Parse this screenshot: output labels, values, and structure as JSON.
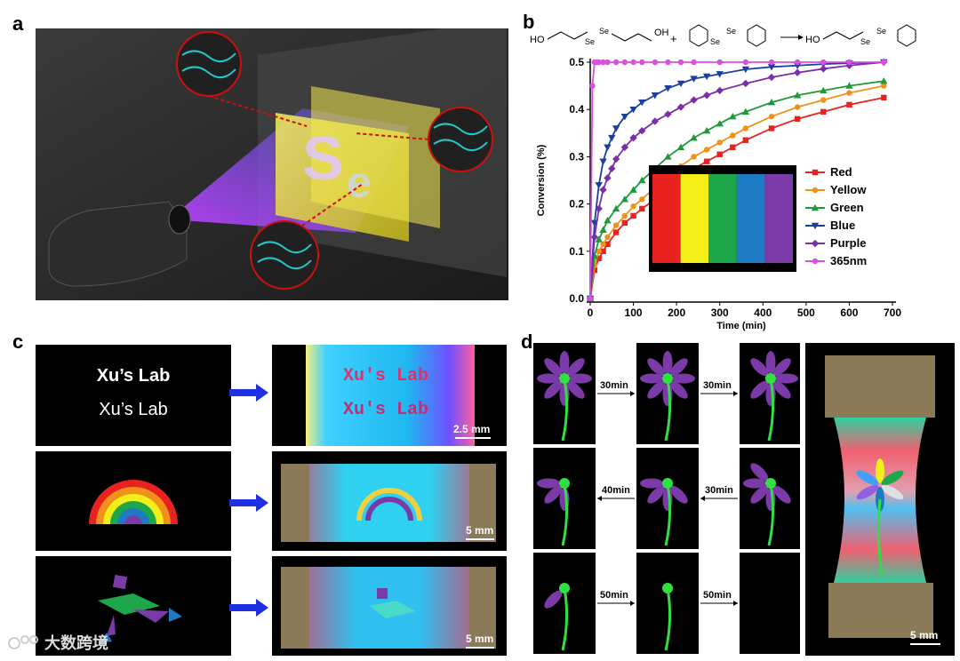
{
  "panels": {
    "a": "a",
    "b": "b",
    "c": "c",
    "d": "d"
  },
  "reaction": {
    "reactant1": "HO–(CH2)3–Se–Se–(CH2)3–OH",
    "reactant2": "benzyl diselenide",
    "product": "HO–(CH2)3–Se–Se–CH2Ph",
    "ho_left": "HO",
    "oh_right": "OH",
    "se": "Se",
    "plus": "+",
    "ho_product": "HO"
  },
  "chart_data": {
    "type": "line",
    "title": "",
    "xlabel": "Time (min)",
    "ylabel": "Conversion (%)",
    "xlim": [
      0,
      700
    ],
    "ylim": [
      0,
      0.5
    ],
    "xticks": [
      0,
      100,
      200,
      300,
      400,
      500,
      600,
      700
    ],
    "yticks": [
      0.0,
      0.1,
      0.2,
      0.3,
      0.4,
      0.5
    ],
    "legend_position": "lower-right",
    "series": [
      {
        "name": "Red",
        "color": "#e8231f",
        "marker": "square",
        "x": [
          0,
          10,
          20,
          30,
          40,
          60,
          80,
          100,
          120,
          150,
          180,
          210,
          240,
          270,
          300,
          330,
          360,
          420,
          480,
          540,
          600,
          680
        ],
        "y": [
          0,
          0.06,
          0.085,
          0.1,
          0.115,
          0.14,
          0.16,
          0.175,
          0.19,
          0.21,
          0.235,
          0.255,
          0.275,
          0.29,
          0.305,
          0.32,
          0.335,
          0.36,
          0.38,
          0.395,
          0.41,
          0.425
        ]
      },
      {
        "name": "Yellow",
        "color": "#f0911a",
        "marker": "circle",
        "x": [
          0,
          10,
          20,
          30,
          40,
          60,
          80,
          100,
          120,
          150,
          180,
          210,
          240,
          270,
          300,
          330,
          360,
          420,
          480,
          540,
          600,
          680
        ],
        "y": [
          0,
          0.07,
          0.1,
          0.115,
          0.13,
          0.155,
          0.175,
          0.195,
          0.21,
          0.235,
          0.26,
          0.28,
          0.3,
          0.315,
          0.33,
          0.345,
          0.36,
          0.385,
          0.405,
          0.42,
          0.435,
          0.45
        ]
      },
      {
        "name": "Green",
        "color": "#1f9a3a",
        "marker": "triangle-up",
        "x": [
          0,
          10,
          20,
          30,
          40,
          60,
          80,
          100,
          120,
          150,
          180,
          210,
          240,
          270,
          300,
          330,
          360,
          420,
          480,
          540,
          600,
          680
        ],
        "y": [
          0,
          0.09,
          0.125,
          0.145,
          0.165,
          0.19,
          0.21,
          0.23,
          0.25,
          0.275,
          0.3,
          0.32,
          0.34,
          0.355,
          0.37,
          0.385,
          0.395,
          0.415,
          0.43,
          0.44,
          0.45,
          0.46
        ]
      },
      {
        "name": "Blue",
        "color": "#1a3f9e",
        "marker": "triangle-down",
        "x": [
          0,
          10,
          20,
          30,
          40,
          50,
          60,
          80,
          100,
          120,
          150,
          180,
          210,
          240,
          270,
          300,
          360,
          420,
          480,
          540,
          600,
          680
        ],
        "y": [
          0,
          0.16,
          0.24,
          0.29,
          0.32,
          0.34,
          0.36,
          0.385,
          0.4,
          0.415,
          0.43,
          0.445,
          0.455,
          0.465,
          0.47,
          0.475,
          0.485,
          0.49,
          0.493,
          0.496,
          0.498,
          0.5
        ]
      },
      {
        "name": "Purple",
        "color": "#7a2fa8",
        "marker": "diamond",
        "x": [
          0,
          10,
          20,
          30,
          40,
          50,
          60,
          80,
          100,
          120,
          150,
          180,
          210,
          240,
          270,
          300,
          360,
          420,
          480,
          540,
          600,
          680
        ],
        "y": [
          0,
          0.13,
          0.19,
          0.23,
          0.255,
          0.275,
          0.295,
          0.32,
          0.34,
          0.355,
          0.375,
          0.39,
          0.405,
          0.42,
          0.43,
          0.44,
          0.455,
          0.468,
          0.478,
          0.486,
          0.493,
          0.5
        ]
      },
      {
        "name": "365nm",
        "color": "#d94fe0",
        "marker": "circle",
        "x": [
          0,
          5,
          10,
          15,
          20,
          30,
          40,
          60,
          80,
          100,
          120,
          150,
          180,
          210,
          240,
          300,
          360,
          420,
          480,
          540,
          600,
          680
        ],
        "y": [
          0,
          0.45,
          0.5,
          0.5,
          0.5,
          0.5,
          0.5,
          0.5,
          0.5,
          0.5,
          0.5,
          0.5,
          0.5,
          0.5,
          0.5,
          0.5,
          0.5,
          0.5,
          0.5,
          0.5,
          0.5,
          0.5
        ]
      }
    ],
    "inset_colors": [
      "#e8231f",
      "#f4ee19",
      "#1ea64a",
      "#1f7ac4",
      "#7a3aa8"
    ]
  },
  "panel_c": {
    "text_line1": "Xu’s Lab",
    "text_line2": "Xu’s Lab",
    "result_text1": "Xu's Lab",
    "result_text2": "Xu's Lab",
    "scalebars": [
      "2.5 mm",
      "5 mm",
      "5 mm"
    ]
  },
  "panel_d": {
    "times": [
      "30min",
      "30min",
      "40min",
      "30min",
      "50min",
      "50min"
    ],
    "scalebar": "5 mm"
  },
  "watermark": "大数跨境"
}
